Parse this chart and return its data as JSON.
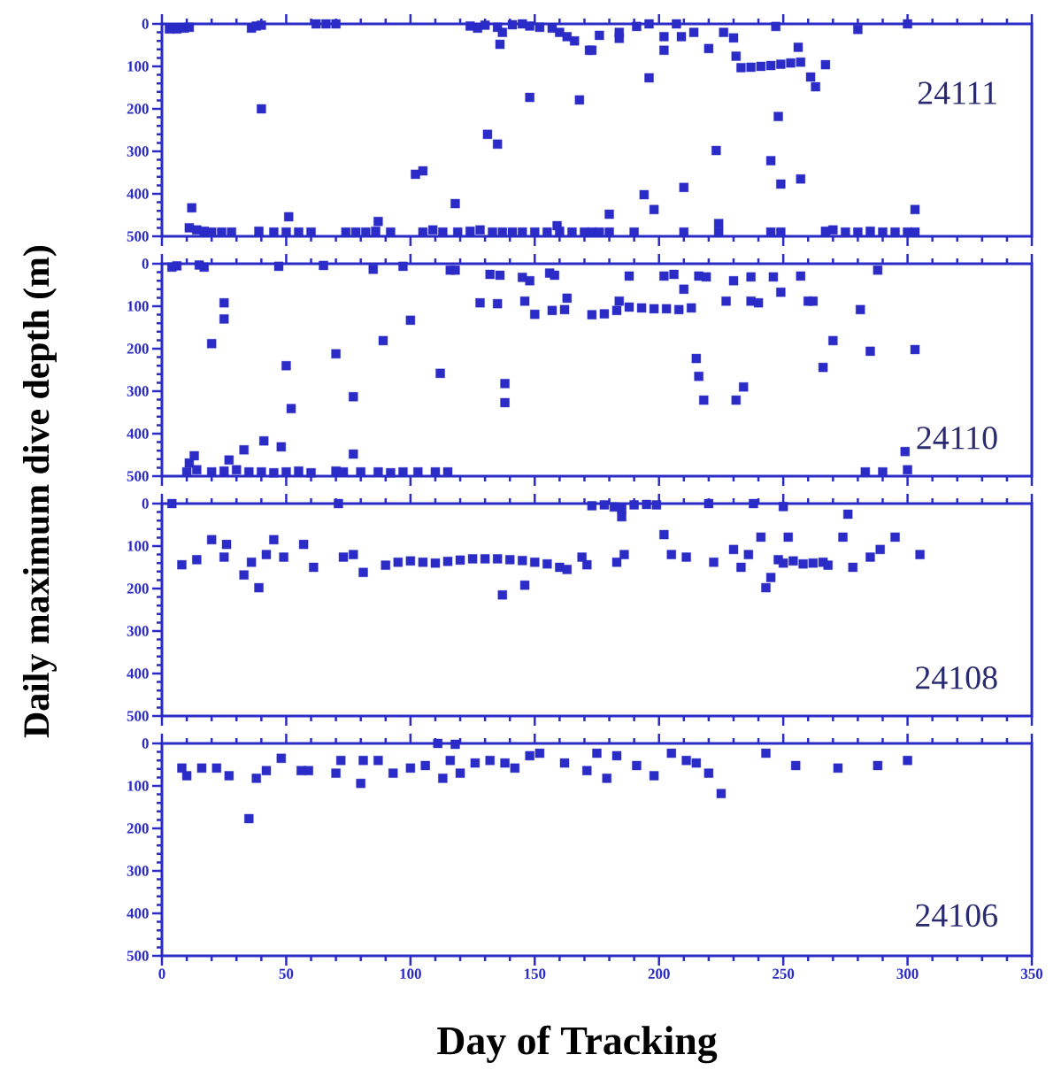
{
  "chart_data": [
    {
      "type": "scatter",
      "ylabel": "Daily maximum dive depth (m)",
      "annotations": [
        "24111"
      ],
      "color": "#2b2bc8",
      "marker": "square",
      "xlim": [
        0,
        350
      ],
      "ylim": [
        500,
        0
      ],
      "xticks": [
        0,
        50,
        100,
        150,
        200,
        250,
        300,
        350
      ],
      "yticks": [
        0,
        100,
        200,
        300,
        400,
        500
      ],
      "tick_labels": "y",
      "x": [
        3,
        6,
        9,
        11,
        36,
        38,
        40,
        62,
        66,
        70,
        40,
        12,
        11,
        14,
        17,
        20,
        24,
        28,
        51,
        39,
        45,
        50,
        55,
        60,
        74,
        78,
        82,
        86,
        92,
        87,
        102,
        105,
        118,
        105,
        109,
        113,
        119,
        124,
        128,
        133,
        137,
        141,
        145,
        150,
        155,
        160,
        165,
        170,
        173,
        159,
        131,
        135,
        148,
        168,
        124,
        127,
        130,
        135,
        137,
        136,
        141,
        145,
        148,
        152,
        157,
        160,
        163,
        166,
        172,
        173,
        176,
        184,
        184,
        191,
        202,
        202,
        209,
        214,
        220,
        226,
        230,
        231,
        196,
        207,
        233,
        237,
        241,
        245,
        249,
        253,
        257,
        256,
        261,
        263,
        267,
        280,
        300,
        247,
        196,
        248,
        223,
        245,
        249,
        257,
        194,
        198,
        210,
        180,
        303,
        176,
        180,
        190,
        210,
        224,
        224,
        245,
        249,
        267,
        270,
        275,
        280,
        285,
        290,
        295,
        300,
        303
      ],
      "values": [
        12,
        12,
        10,
        8,
        10,
        5,
        3,
        0,
        0,
        0,
        200,
        433,
        480,
        485,
        488,
        490,
        490,
        490,
        454,
        488,
        490,
        490,
        490,
        490,
        490,
        490,
        490,
        488,
        490,
        465,
        354,
        346,
        423,
        490,
        485,
        490,
        490,
        488,
        485,
        490,
        490,
        490,
        490,
        490,
        490,
        488,
        490,
        490,
        490,
        475,
        260,
        283,
        173,
        179,
        5,
        10,
        3,
        8,
        20,
        48,
        2,
        0,
        5,
        8,
        10,
        20,
        30,
        40,
        62,
        62,
        27,
        34,
        20,
        6,
        62,
        30,
        30,
        20,
        58,
        20,
        33,
        76,
        0,
        0,
        103,
        102,
        100,
        98,
        95,
        92,
        90,
        55,
        125,
        148,
        96,
        13,
        0,
        6,
        127,
        218,
        298,
        322,
        377,
        365,
        402,
        437,
        385,
        448,
        437,
        490,
        490,
        490,
        490,
        470,
        490,
        490,
        490,
        488,
        485,
        490,
        490,
        488,
        490,
        490,
        490,
        490
      ]
    },
    {
      "type": "scatter",
      "annotations": [
        "24110"
      ],
      "color": "#2b2bc8",
      "marker": "square",
      "xlim": [
        0,
        350
      ],
      "ylim": [
        500,
        0
      ],
      "xticks": [
        0,
        50,
        100,
        150,
        200,
        250,
        300,
        350
      ],
      "yticks": [
        0,
        100,
        200,
        300,
        400,
        500
      ],
      "tick_labels": "y",
      "x": [
        4,
        6,
        17,
        15,
        47,
        65,
        85,
        97,
        116,
        118,
        132,
        136,
        145,
        148,
        156,
        158,
        25,
        25,
        20,
        128,
        135,
        146,
        150,
        163,
        162,
        157,
        100,
        89,
        70,
        50,
        112,
        138,
        138,
        77,
        52,
        13,
        11,
        33,
        41,
        48,
        77,
        10,
        14,
        20,
        25,
        30,
        35,
        40,
        45,
        50,
        55,
        60,
        70,
        73,
        80,
        87,
        92,
        97,
        103,
        110,
        115,
        27,
        188,
        202,
        206,
        216,
        219,
        210,
        230,
        237,
        246,
        257,
        288,
        173,
        178,
        183,
        188,
        193,
        198,
        203,
        208,
        213,
        184,
        227,
        237,
        240,
        249,
        260,
        262,
        281,
        270,
        285,
        303,
        266,
        215,
        216,
        218,
        231,
        234,
        299,
        283,
        290,
        300
      ],
      "values": [
        8,
        5,
        8,
        3,
        6,
        4,
        13,
        6,
        15,
        15,
        25,
        27,
        32,
        40,
        22,
        27,
        92,
        130,
        188,
        92,
        94,
        88,
        119,
        81,
        108,
        110,
        133,
        181,
        212,
        240,
        258,
        282,
        327,
        313,
        341,
        452,
        469,
        438,
        417,
        431,
        448,
        490,
        485,
        490,
        488,
        485,
        490,
        490,
        492,
        490,
        488,
        492,
        488,
        490,
        490,
        490,
        492,
        490,
        490,
        490,
        490,
        462,
        29,
        29,
        25,
        29,
        31,
        60,
        40,
        31,
        31,
        29,
        15,
        120,
        118,
        110,
        102,
        104,
        106,
        106,
        108,
        104,
        88,
        88,
        88,
        92,
        67,
        88,
        88,
        108,
        181,
        206,
        202,
        244,
        223,
        265,
        321,
        321,
        290,
        442,
        490,
        490,
        485
      ]
    },
    {
      "type": "scatter",
      "annotations": [
        "24108"
      ],
      "color": "#2b2bc8",
      "marker": "square",
      "xlim": [
        0,
        350
      ],
      "ylim": [
        500,
        0
      ],
      "xticks": [
        0,
        50,
        100,
        150,
        200,
        250,
        300,
        350
      ],
      "yticks": [
        0,
        100,
        200,
        300,
        400,
        500
      ],
      "tick_labels": "y",
      "x": [
        4,
        8,
        14,
        20,
        26,
        25,
        33,
        36,
        39,
        45,
        42,
        49,
        57,
        61,
        71,
        73,
        77,
        81,
        90,
        95,
        100,
        105,
        110,
        115,
        120,
        125,
        130,
        135,
        140,
        145,
        150,
        155,
        160,
        163,
        137,
        146,
        169,
        171,
        183,
        186,
        173,
        178,
        182,
        185,
        190,
        195,
        199,
        185,
        220,
        238,
        250,
        202,
        205,
        211,
        222,
        230,
        233,
        236,
        241,
        243,
        245,
        252,
        248,
        250,
        254,
        258,
        262,
        266,
        268,
        276,
        274,
        278,
        285,
        295,
        289,
        305
      ],
      "values": [
        0,
        144,
        132,
        85,
        96,
        126,
        168,
        138,
        198,
        85,
        120,
        126,
        96,
        150,
        0,
        126,
        120,
        162,
        145,
        138,
        135,
        138,
        140,
        136,
        133,
        130,
        130,
        130,
        132,
        134,
        138,
        142,
        150,
        155,
        215,
        192,
        126,
        144,
        138,
        120,
        5,
        3,
        8,
        12,
        3,
        2,
        3,
        31,
        0,
        0,
        7,
        73,
        120,
        126,
        138,
        108,
        150,
        120,
        79,
        198,
        174,
        79,
        132,
        140,
        135,
        142,
        140,
        138,
        145,
        25,
        79,
        150,
        126,
        79,
        108,
        120
      ]
    },
    {
      "type": "scatter",
      "xlabel": "Day of Tracking",
      "annotations": [
        "24106"
      ],
      "color": "#2b2bc8",
      "marker": "square",
      "xlim": [
        0,
        350
      ],
      "ylim": [
        500,
        0
      ],
      "xticks": [
        0,
        50,
        100,
        150,
        200,
        250,
        300,
        350
      ],
      "yticks": [
        0,
        100,
        200,
        300,
        400,
        500
      ],
      "x": [
        8,
        10,
        16,
        22,
        27,
        35,
        38,
        42,
        48,
        56,
        59,
        70,
        72,
        80,
        81,
        87,
        93,
        100,
        106,
        111,
        118,
        113,
        116,
        120,
        126,
        132,
        138,
        142,
        148,
        152,
        162,
        171,
        175,
        179,
        183,
        191,
        198,
        205,
        211,
        215,
        220,
        225,
        243,
        255,
        272,
        288,
        300
      ],
      "values": [
        58,
        76,
        58,
        58,
        76,
        177,
        82,
        64,
        35,
        64,
        64,
        70,
        40,
        94,
        40,
        40,
        70,
        58,
        52,
        0,
        2,
        82,
        40,
        70,
        46,
        40,
        46,
        58,
        29,
        23,
        46,
        64,
        23,
        82,
        29,
        52,
        76,
        23,
        40,
        46,
        70,
        118,
        23,
        52,
        58,
        52,
        40
      ]
    }
  ]
}
